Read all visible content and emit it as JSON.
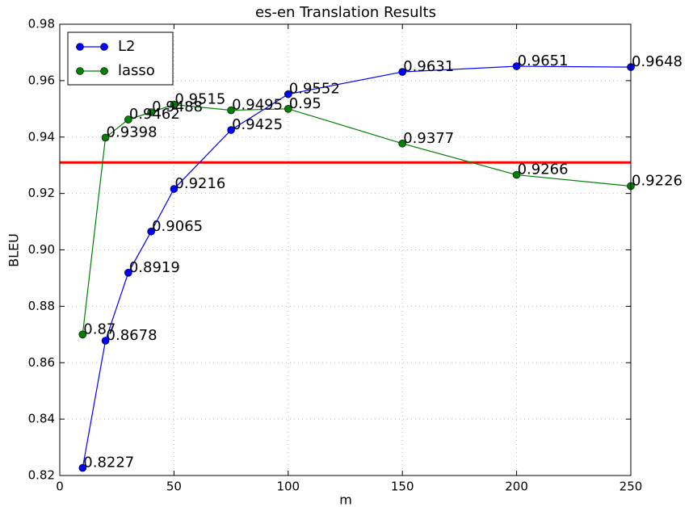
{
  "chart_data": {
    "type": "line",
    "title": "es-en Translation Results",
    "x_label": "m",
    "y_label": "BLEU",
    "x": [
      10,
      20,
      30,
      40,
      50,
      75,
      100,
      150,
      200,
      250
    ],
    "series": [
      {
        "name": "L2",
        "color": "#0000ff",
        "values": [
          0.8227,
          0.8678,
          0.8919,
          0.9065,
          0.9216,
          0.9425,
          0.9552,
          0.9631,
          0.9651,
          0.9648
        ]
      },
      {
        "name": "lasso",
        "color": "#008000",
        "values": [
          0.87,
          0.9398,
          0.9462,
          0.9488,
          0.9515,
          0.9495,
          0.95,
          0.9377,
          0.9266,
          0.9226
        ]
      }
    ],
    "reference_line": {
      "value": 0.931,
      "color": "#ff0000"
    },
    "xlim": [
      0,
      250
    ],
    "xticks": [
      0,
      50,
      100,
      150,
      200,
      250
    ],
    "ylim": [
      0.82,
      0.98
    ],
    "yticks": [
      0.82,
      0.84,
      0.86,
      0.88,
      {
        "value": 0.9,
        "label": "0.90"
      },
      0.92,
      0.94,
      0.96,
      0.98
    ],
    "grid": true,
    "legend": "upper-left"
  }
}
